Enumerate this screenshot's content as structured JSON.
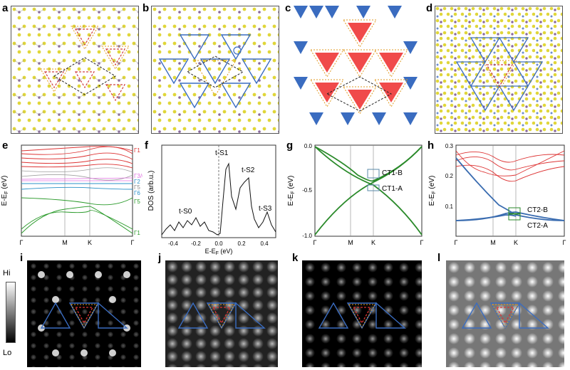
{
  "panels": {
    "a": "a",
    "b": "b",
    "c": "c",
    "d": "d",
    "e": "e",
    "f": "f",
    "g": "g",
    "h": "h",
    "i": "i",
    "j": "j",
    "k": "k",
    "l": "l"
  },
  "band_e": {
    "ylabel": "E-E",
    "ylabel_sub": "F",
    "ylabel_unit": " (eV)",
    "ticks": [
      "Γ",
      "M",
      "K",
      "Γ"
    ],
    "labels": [
      "Γ1",
      "Γ3/6",
      "Γ2",
      "Γ5",
      "Γ6",
      "Γ5",
      "Γ1"
    ]
  },
  "dos_f": {
    "ylabel": "DOS (arb.u.)",
    "xlabel_main": "E-E",
    "xlabel_sub": "F",
    "xlabel_unit": " (eV)",
    "xticks": [
      "-0.4",
      "-0.2",
      "0.0",
      "0.2",
      "0.4"
    ],
    "peaks": [
      "t-S0",
      "t-S1",
      "t-S2",
      "t-S3"
    ]
  },
  "band_g": {
    "ylabel": "E-E",
    "ylabel_sub": "F",
    "ylabel_unit": " (eV)",
    "yticks": [
      "0.0",
      "-0.5",
      "-1.0"
    ],
    "xticks": [
      "Γ",
      "M",
      "K",
      "Γ"
    ],
    "labels": [
      "CT1-B",
      "CT1-A"
    ]
  },
  "band_h": {
    "ylabel": "E-E",
    "ylabel_sub": "F",
    "ylabel_unit": " (eV)",
    "yticks": [
      "0.3",
      "0.2",
      "0.1"
    ],
    "xticks": [
      "Γ",
      "M",
      "K",
      "Γ"
    ],
    "labels": [
      "CT2-B",
      "CT2-A"
    ]
  },
  "colorbar": {
    "hi": "Hi",
    "lo": "Lo"
  },
  "colors": {
    "atom_yellow": "#e0d63a",
    "atom_purple": "#8a6a9e",
    "atom_red": "#d04040",
    "triangle_blue": "#3a6cc0",
    "triangle_red": "#f04a4a",
    "dashed_orange": "#e09a20",
    "band_red": "#dd3333",
    "band_green": "#2a9a2a",
    "band_blue": "#3a6cb0",
    "band_gray": "#a0a0a0",
    "band_magenta": "#e070e0"
  }
}
